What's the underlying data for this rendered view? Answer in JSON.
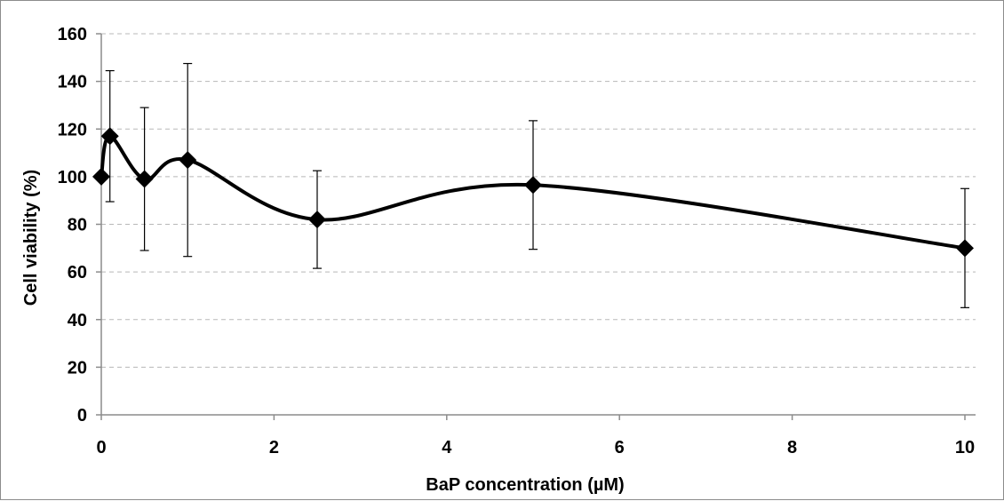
{
  "chart_data": {
    "type": "line",
    "title": "",
    "xlabel": "BaP concentration (µM)",
    "ylabel": "Cell viability (%)",
    "xlim": [
      0,
      10
    ],
    "ylim": [
      0,
      160
    ],
    "x_ticks": [
      0,
      2,
      4,
      6,
      8,
      10
    ],
    "y_ticks": [
      0,
      20,
      40,
      60,
      80,
      100,
      120,
      140,
      160
    ],
    "x_tick_labels": [
      "0",
      "2",
      "4",
      "6",
      "8",
      "10"
    ],
    "y_tick_labels": [
      "0",
      "20",
      "40",
      "60",
      "80",
      "100",
      "120",
      "140",
      "160"
    ],
    "grid": "horizontal dashed",
    "legend": "none",
    "smooth": true,
    "marker": "diamond",
    "series": [
      {
        "x": [
          0,
          0.1,
          0.5,
          1,
          2.5,
          5,
          10
        ],
        "y": [
          100,
          117,
          99,
          107,
          82,
          96.5,
          70
        ],
        "error": [
          0,
          27.5,
          30,
          40.5,
          20.5,
          27,
          25
        ],
        "color": "#000000"
      }
    ]
  }
}
